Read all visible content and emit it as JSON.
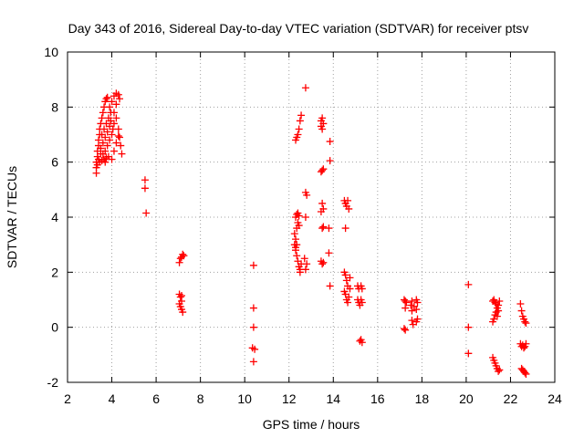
{
  "chart_data": {
    "type": "scatter",
    "title": "Day 343 of 2016, Sidereal Day-to-day VTEC variation (SDTVAR) for receiver ptsv",
    "xlabel": "GPS time / hours",
    "ylabel": "SDTVAR / TECUs",
    "xlim": [
      2,
      24
    ],
    "ylim": [
      -2,
      10
    ],
    "xticks": [
      2,
      4,
      6,
      8,
      10,
      12,
      14,
      16,
      18,
      20,
      22,
      24
    ],
    "yticks": [
      -2,
      0,
      2,
      4,
      6,
      8,
      10
    ],
    "grid": true,
    "marker": "plus",
    "marker_color": "#ff0000",
    "series": [
      {
        "name": "SDTVAR",
        "points": [
          [
            3.3,
            5.6
          ],
          [
            3.3,
            5.8
          ],
          [
            3.3,
            6.0
          ],
          [
            3.35,
            6.2
          ],
          [
            3.35,
            6.4
          ],
          [
            3.4,
            6.6
          ],
          [
            3.4,
            6.8
          ],
          [
            3.45,
            7.0
          ],
          [
            3.45,
            7.2
          ],
          [
            3.5,
            7.4
          ],
          [
            3.55,
            7.6
          ],
          [
            3.6,
            7.8
          ],
          [
            3.65,
            8.0
          ],
          [
            3.7,
            8.2
          ],
          [
            3.75,
            8.3
          ],
          [
            3.8,
            8.35
          ],
          [
            3.35,
            5.9
          ],
          [
            3.45,
            6.0
          ],
          [
            3.55,
            6.05
          ],
          [
            3.65,
            6.1
          ],
          [
            3.75,
            6.15
          ],
          [
            3.85,
            6.2
          ],
          [
            3.5,
            6.5
          ],
          [
            3.6,
            6.7
          ],
          [
            3.7,
            6.9
          ],
          [
            3.8,
            7.1
          ],
          [
            3.9,
            7.3
          ],
          [
            3.55,
            7.0
          ],
          [
            3.65,
            7.2
          ],
          [
            3.75,
            7.4
          ],
          [
            3.85,
            7.6
          ],
          [
            3.95,
            7.8
          ],
          [
            3.7,
            6.4
          ],
          [
            3.8,
            6.6
          ],
          [
            3.9,
            6.8
          ],
          [
            4.0,
            7.0
          ],
          [
            4.05,
            7.2
          ],
          [
            4.1,
            7.4
          ],
          [
            3.9,
            8.0
          ],
          [
            4.0,
            8.2
          ],
          [
            4.1,
            8.4
          ],
          [
            4.2,
            8.5
          ],
          [
            4.3,
            8.45
          ],
          [
            4.35,
            8.3
          ],
          [
            4.1,
            7.8
          ],
          [
            4.2,
            7.6
          ],
          [
            4.3,
            7.2
          ],
          [
            4.35,
            6.9
          ],
          [
            4.4,
            6.6
          ],
          [
            4.45,
            6.3
          ],
          [
            4.0,
            6.1
          ],
          [
            4.1,
            6.4
          ],
          [
            4.2,
            6.7
          ],
          [
            4.3,
            6.95
          ],
          [
            3.6,
            6.3
          ],
          [
            3.7,
            6.0
          ],
          [
            3.4,
            6.1
          ],
          [
            3.5,
            6.3
          ],
          [
            3.95,
            7.5
          ],
          [
            4.2,
            8.1
          ],
          [
            5.5,
            5.35
          ],
          [
            5.5,
            5.05
          ],
          [
            5.55,
            4.15
          ],
          [
            7.05,
            2.35
          ],
          [
            7.1,
            2.5
          ],
          [
            7.15,
            2.55
          ],
          [
            7.2,
            2.65
          ],
          [
            7.25,
            2.6
          ],
          [
            7.05,
            1.2
          ],
          [
            7.1,
            1.1
          ],
          [
            7.15,
            0.95
          ],
          [
            7.05,
            0.85
          ],
          [
            7.1,
            0.75
          ],
          [
            7.15,
            0.65
          ],
          [
            7.2,
            0.55
          ],
          [
            7.15,
            1.15
          ],
          [
            10.4,
            2.25
          ],
          [
            10.4,
            0.7
          ],
          [
            10.4,
            0.0
          ],
          [
            10.35,
            -0.75
          ],
          [
            10.45,
            -0.8
          ],
          [
            10.4,
            -1.25
          ],
          [
            12.3,
            6.8
          ],
          [
            12.35,
            6.9
          ],
          [
            12.4,
            7.0
          ],
          [
            12.45,
            7.2
          ],
          [
            12.5,
            7.5
          ],
          [
            12.55,
            7.7
          ],
          [
            12.3,
            4.0
          ],
          [
            12.35,
            4.1
          ],
          [
            12.4,
            4.15
          ],
          [
            12.45,
            4.05
          ],
          [
            12.25,
            3.4
          ],
          [
            12.3,
            3.2
          ],
          [
            12.35,
            3.0
          ],
          [
            12.3,
            2.8
          ],
          [
            12.35,
            2.6
          ],
          [
            12.4,
            2.4
          ],
          [
            12.45,
            2.2
          ],
          [
            12.5,
            2.1
          ],
          [
            12.5,
            2.0
          ],
          [
            12.35,
            3.6
          ],
          [
            12.4,
            3.8
          ],
          [
            12.45,
            3.7
          ],
          [
            12.25,
            3.0
          ],
          [
            12.3,
            2.9
          ],
          [
            12.55,
            2.3
          ],
          [
            12.75,
            8.7
          ],
          [
            12.75,
            4.9
          ],
          [
            12.8,
            4.8
          ],
          [
            12.75,
            4.0
          ],
          [
            12.7,
            2.5
          ],
          [
            12.8,
            2.3
          ],
          [
            12.75,
            2.1
          ],
          [
            13.45,
            7.5
          ],
          [
            13.5,
            7.6
          ],
          [
            13.55,
            7.4
          ],
          [
            13.45,
            7.3
          ],
          [
            13.5,
            7.2
          ],
          [
            13.45,
            5.65
          ],
          [
            13.5,
            5.7
          ],
          [
            13.55,
            5.75
          ],
          [
            13.5,
            4.5
          ],
          [
            13.55,
            4.3
          ],
          [
            13.45,
            4.2
          ],
          [
            13.5,
            3.6
          ],
          [
            13.55,
            3.65
          ],
          [
            13.45,
            2.4
          ],
          [
            13.5,
            2.3
          ],
          [
            13.55,
            2.35
          ],
          [
            13.85,
            6.75
          ],
          [
            13.85,
            6.05
          ],
          [
            13.8,
            3.6
          ],
          [
            13.8,
            2.7
          ],
          [
            13.85,
            1.5
          ],
          [
            14.5,
            4.6
          ],
          [
            14.55,
            4.5
          ],
          [
            14.6,
            4.4
          ],
          [
            14.65,
            4.6
          ],
          [
            14.7,
            4.3
          ],
          [
            14.5,
            2.0
          ],
          [
            14.55,
            1.9
          ],
          [
            14.6,
            1.7
          ],
          [
            14.65,
            1.5
          ],
          [
            14.5,
            1.3
          ],
          [
            14.55,
            1.2
          ],
          [
            14.6,
            1.0
          ],
          [
            14.65,
            0.9
          ],
          [
            14.7,
            1.1
          ],
          [
            14.55,
            3.6
          ],
          [
            14.75,
            1.8
          ],
          [
            14.75,
            1.4
          ],
          [
            15.1,
            1.5
          ],
          [
            15.15,
            1.4
          ],
          [
            15.25,
            1.5
          ],
          [
            15.3,
            1.4
          ],
          [
            15.1,
            1.0
          ],
          [
            15.15,
            0.9
          ],
          [
            15.2,
            0.8
          ],
          [
            15.25,
            1.0
          ],
          [
            15.3,
            0.9
          ],
          [
            15.2,
            -0.5
          ],
          [
            15.25,
            -0.45
          ],
          [
            15.3,
            -0.55
          ],
          [
            17.2,
            1.0
          ],
          [
            17.25,
            0.95
          ],
          [
            17.3,
            0.9
          ],
          [
            17.25,
            0.7
          ],
          [
            17.2,
            -0.05
          ],
          [
            17.25,
            -0.1
          ],
          [
            17.55,
            0.95
          ],
          [
            17.55,
            0.6
          ],
          [
            17.55,
            0.25
          ],
          [
            17.6,
            0.1
          ],
          [
            17.75,
            1.0
          ],
          [
            17.8,
            0.9
          ],
          [
            17.75,
            0.65
          ],
          [
            17.8,
            0.3
          ],
          [
            17.75,
            0.2
          ],
          [
            17.5,
            0.8
          ],
          [
            17.65,
            0.75
          ],
          [
            20.1,
            1.55
          ],
          [
            20.1,
            0.0
          ],
          [
            20.1,
            -0.95
          ],
          [
            21.2,
            0.95
          ],
          [
            21.25,
            1.0
          ],
          [
            21.3,
            0.9
          ],
          [
            21.35,
            0.85
          ],
          [
            21.4,
            0.7
          ],
          [
            21.35,
            0.55
          ],
          [
            21.3,
            0.45
          ],
          [
            21.25,
            0.3
          ],
          [
            21.2,
            0.2
          ],
          [
            21.4,
            0.4
          ],
          [
            21.45,
            0.8
          ],
          [
            21.5,
            0.95
          ],
          [
            21.45,
            0.6
          ],
          [
            21.2,
            -1.1
          ],
          [
            21.25,
            -1.2
          ],
          [
            21.3,
            -1.3
          ],
          [
            21.35,
            -1.4
          ],
          [
            21.4,
            -1.5
          ],
          [
            21.45,
            -1.6
          ],
          [
            21.5,
            -1.55
          ],
          [
            22.45,
            0.85
          ],
          [
            22.5,
            0.6
          ],
          [
            22.55,
            0.4
          ],
          [
            22.6,
            0.3
          ],
          [
            22.65,
            0.2
          ],
          [
            22.7,
            0.15
          ],
          [
            22.45,
            -0.6
          ],
          [
            22.5,
            -0.7
          ],
          [
            22.55,
            -0.65
          ],
          [
            22.6,
            -0.75
          ],
          [
            22.65,
            -0.7
          ],
          [
            22.7,
            -0.6
          ],
          [
            22.5,
            -1.5
          ],
          [
            22.55,
            -1.55
          ],
          [
            22.6,
            -1.6
          ],
          [
            22.65,
            -1.65
          ],
          [
            22.7,
            -1.7
          ]
        ]
      }
    ]
  }
}
